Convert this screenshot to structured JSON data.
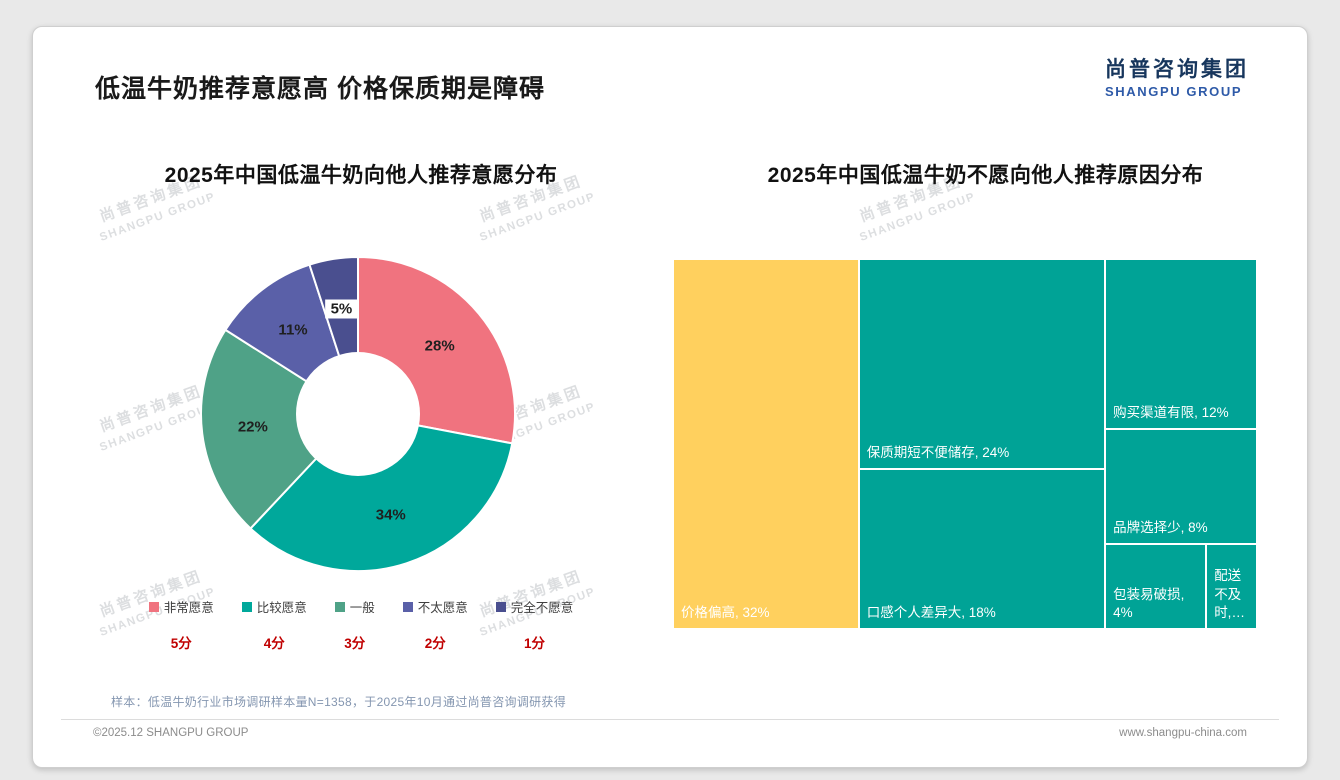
{
  "page": {
    "title": "低温牛奶推荐意愿高 价格保质期是障碍",
    "logo": {
      "cn": "尚普咨询集团",
      "en": "SHANGPU GROUP"
    },
    "watermark": {
      "line1": "尚普咨询集团",
      "line2": "SHANGPU GROUP"
    },
    "footer_note": "样本：低温牛奶行业市场调研样本量N=1358，于2025年10月通过尚普咨询调研获得",
    "footer_left": "©2025.12 SHANGPU GROUP",
    "footer_right": "www.shangpu-china.com"
  },
  "chart_data": [
    {
      "type": "pie",
      "subtype": "donut",
      "title": "2025年中国低温牛奶向他人推荐意愿分布",
      "labels": [
        "非常愿意",
        "比较愿意",
        "一般",
        "不太愿意",
        "完全不愿意"
      ],
      "values": [
        28,
        34,
        22,
        11,
        5
      ],
      "value_labels": [
        "28%",
        "34%",
        "22%",
        "11%",
        "5%"
      ],
      "scores": [
        "5分",
        "4分",
        "3分",
        "2分",
        "1分"
      ],
      "colors": [
        "#F0737F",
        "#00A89B",
        "#4FA287",
        "#5A60A8",
        "#4A4F8F"
      ],
      "legend_position": "bottom",
      "start_angle": "top",
      "direction": "clockwise"
    },
    {
      "type": "treemap",
      "title": "2025年中国低温牛奶不愿向他人推荐原因分布",
      "items": [
        {
          "label": "价格偏高",
          "value": 32,
          "display": "价格偏高, 32%",
          "color": "#FFD05E"
        },
        {
          "label": "保质期短不便储存",
          "value": 24,
          "display": "保质期短不便储存, 24%",
          "color": "#00A396"
        },
        {
          "label": "口感个人差异大",
          "value": 18,
          "display": "口感个人差异大, 18%",
          "color": "#00A396"
        },
        {
          "label": "购买渠道有限",
          "value": 12,
          "display": "购买渠道有限, 12%",
          "color": "#00A396"
        },
        {
          "label": "品牌选择少",
          "value": 8,
          "display": "品牌选择少, 8%",
          "color": "#00A396"
        },
        {
          "label": "包装易破损",
          "value": 4,
          "display": "包装易破损, 4%",
          "color": "#00A396"
        },
        {
          "label": "配送不及时",
          "value": 2,
          "display": "配送不及时,…",
          "color": "#00A396"
        }
      ]
    }
  ]
}
